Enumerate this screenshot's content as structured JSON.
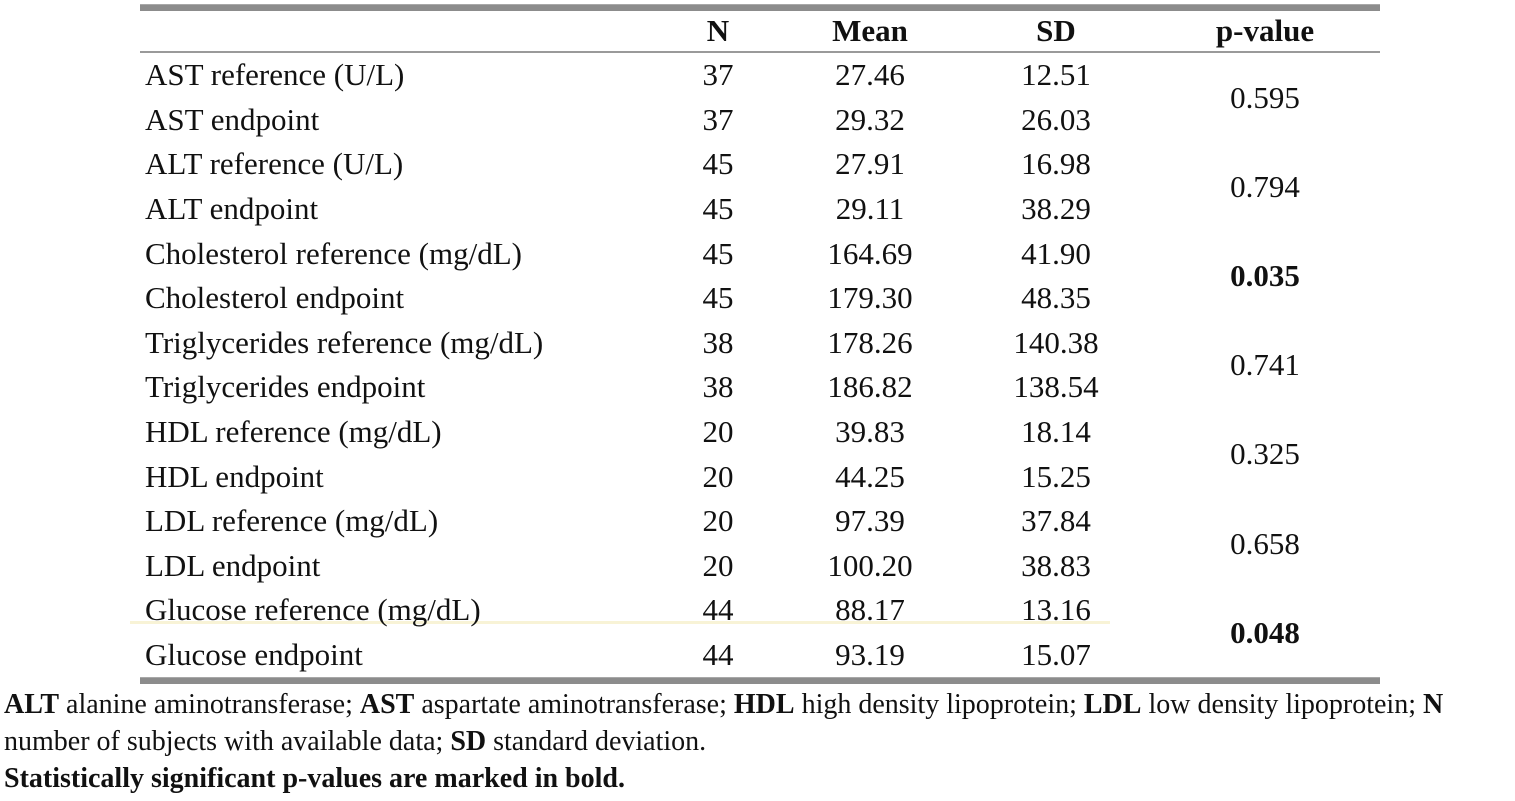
{
  "colors": {
    "rule_gray": "#8c8c8c",
    "text": "#111111",
    "highlight_line": "#f8f3d6"
  },
  "table": {
    "headers": {
      "label": "",
      "n": "N",
      "mean": "Mean",
      "sd": "SD",
      "pvalue": "p-value"
    },
    "groups": [
      {
        "p_value": "0.595",
        "significant": false,
        "rows": [
          {
            "label": "AST reference (U/L)",
            "n": "37",
            "mean": "27.46",
            "sd": "12.51"
          },
          {
            "label": "AST endpoint",
            "n": "37",
            "mean": "29.32",
            "sd": "26.03"
          }
        ]
      },
      {
        "p_value": "0.794",
        "significant": false,
        "rows": [
          {
            "label": "ALT reference (U/L)",
            "n": "45",
            "mean": "27.91",
            "sd": "16.98"
          },
          {
            "label": "ALT endpoint",
            "n": "45",
            "mean": "29.11",
            "sd": "38.29"
          }
        ]
      },
      {
        "p_value": "0.035",
        "significant": true,
        "rows": [
          {
            "label": "Cholesterol reference (mg/dL)",
            "n": "45",
            "mean": "164.69",
            "sd": "41.90"
          },
          {
            "label": "Cholesterol endpoint",
            "n": "45",
            "mean": "179.30",
            "sd": "48.35"
          }
        ]
      },
      {
        "p_value": "0.741",
        "significant": false,
        "rows": [
          {
            "label": "Triglycerides reference (mg/dL)",
            "n": "38",
            "mean": "178.26",
            "sd": "140.38"
          },
          {
            "label": "Triglycerides endpoint",
            "n": "38",
            "mean": "186.82",
            "sd": "138.54"
          }
        ]
      },
      {
        "p_value": "0.325",
        "significant": false,
        "rows": [
          {
            "label": "HDL reference (mg/dL)",
            "n": "20",
            "mean": "39.83",
            "sd": "18.14"
          },
          {
            "label": "HDL endpoint",
            "n": "20",
            "mean": "44.25",
            "sd": "15.25"
          }
        ]
      },
      {
        "p_value": "0.658",
        "significant": false,
        "rows": [
          {
            "label": "LDL reference (mg/dL)",
            "n": "20",
            "mean": "97.39",
            "sd": "37.84"
          },
          {
            "label": "LDL endpoint",
            "n": "20",
            "mean": "100.20",
            "sd": "38.83"
          }
        ]
      },
      {
        "p_value": "0.048",
        "significant": true,
        "rows": [
          {
            "label": "Glucose reference (mg/dL)",
            "n": "44",
            "mean": "88.17",
            "sd": "13.16"
          },
          {
            "label": "Glucose endpoint",
            "n": "44",
            "mean": "93.19",
            "sd": "15.07"
          }
        ]
      }
    ]
  },
  "footnote": {
    "segments": [
      {
        "text": "ALT",
        "bold": true
      },
      {
        "text": " alanine aminotransferase; ",
        "bold": false
      },
      {
        "text": "AST",
        "bold": true
      },
      {
        "text": " aspartate aminotransferase; ",
        "bold": false
      },
      {
        "text": "HDL",
        "bold": true
      },
      {
        "text": " high density lipoprotein; ",
        "bold": false
      },
      {
        "text": "LDL",
        "bold": true
      },
      {
        "text": " low density lipoprotein; ",
        "bold": false
      },
      {
        "text": "N",
        "bold": true
      },
      {
        "text": " number of subjects with available data; ",
        "bold": false
      },
      {
        "text": "SD",
        "bold": true
      },
      {
        "text": " standard deviation.",
        "bold": false
      }
    ],
    "significance_note": "Statistically significant p-values are marked in bold."
  }
}
